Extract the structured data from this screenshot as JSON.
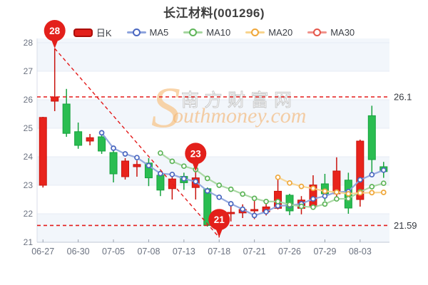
{
  "title": "长江材料(001296)",
  "legend": {
    "items": [
      {
        "label": "日K",
        "type": "kline",
        "line_color": "#e3201b",
        "marker_color": "#ab0e0a"
      },
      {
        "label": "MA5",
        "type": "line",
        "line_color": "#8ea4dd",
        "marker_color": "#4a67c0"
      },
      {
        "label": "MA10",
        "type": "line",
        "line_color": "#a5d69f",
        "marker_color": "#5fb55a"
      },
      {
        "label": "MA20",
        "type": "line",
        "line_color": "#f8d48e",
        "marker_color": "#efa73a"
      },
      {
        "label": "MA30",
        "type": "line",
        "line_color": "#f0938c",
        "marker_color": "#e4564a"
      }
    ]
  },
  "watermark": {
    "initial": "S",
    "cn": "南方财富网",
    "en": "outhmoney.com"
  },
  "chart_data": {
    "type": "candlestick",
    "title": "长江材料(001296)",
    "stock_name": "长江材料",
    "stock_code": "001296",
    "up_color": "#e8231c",
    "up_stroke": "#c9130d",
    "down_color": "#2abd51",
    "down_stroke": "#17a23e",
    "grid_band_color": "#f2f6fb",
    "y_axis": {
      "min": 21,
      "max": 28.15,
      "ticks": [
        21,
        22,
        23,
        24,
        25,
        26,
        27,
        28
      ]
    },
    "x_tick_labels": [
      "06-27",
      "06-30",
      "07-05",
      "07-08",
      "07-13",
      "07-18",
      "07-21",
      "07-26",
      "07-29",
      "08-03"
    ],
    "x_tick_indices": [
      0,
      3,
      6,
      9,
      12,
      15,
      18,
      21,
      24,
      27
    ],
    "candles": [
      {
        "date": "06-27",
        "open": 23.0,
        "high": 25.4,
        "low": 22.92,
        "close": 25.38
      },
      {
        "date": "06-28",
        "open": 25.95,
        "high": 27.8,
        "low": 25.6,
        "close": 26.1
      },
      {
        "date": "06-29",
        "open": 25.85,
        "high": 26.38,
        "low": 24.7,
        "close": 24.82
      },
      {
        "date": "06-30",
        "open": 24.88,
        "high": 25.2,
        "low": 24.28,
        "close": 24.4
      },
      {
        "date": "07-01",
        "open": 24.55,
        "high": 24.8,
        "low": 24.4,
        "close": 24.67
      },
      {
        "date": "07-04",
        "open": 24.7,
        "high": 24.75,
        "low": 24.1,
        "close": 24.2
      },
      {
        "date": "07-05",
        "open": 24.15,
        "high": 24.26,
        "low": 23.1,
        "close": 23.4
      },
      {
        "date": "07-06",
        "open": 23.3,
        "high": 23.95,
        "low": 23.2,
        "close": 23.85
      },
      {
        "date": "07-07",
        "open": 23.65,
        "high": 23.87,
        "low": 23.3,
        "close": 23.73
      },
      {
        "date": "07-08",
        "open": 23.78,
        "high": 23.95,
        "low": 22.97,
        "close": 23.26
      },
      {
        "date": "07-11",
        "open": 23.35,
        "high": 23.4,
        "low": 22.62,
        "close": 22.83
      },
      {
        "date": "07-12",
        "open": 22.88,
        "high": 23.35,
        "low": 22.5,
        "close": 23.22
      },
      {
        "date": "07-13",
        "open": 23.31,
        "high": 23.44,
        "low": 22.84,
        "close": 23.09
      },
      {
        "date": "07-14",
        "open": 22.92,
        "high": 23.49,
        "low": 22.5,
        "close": 23.26
      },
      {
        "date": "07-15",
        "open": 22.88,
        "high": 22.92,
        "low": 21.55,
        "close": 21.59
      },
      {
        "date": "07-18",
        "open": 21.6,
        "high": 21.85,
        "low": 21.17,
        "close": 21.75
      },
      {
        "date": "07-19",
        "open": 22.0,
        "high": 22.33,
        "low": 21.73,
        "close": 22.05
      },
      {
        "date": "07-20",
        "open": 22.03,
        "high": 22.33,
        "low": 21.85,
        "close": 22.15
      },
      {
        "date": "07-21",
        "open": 22.1,
        "high": 22.45,
        "low": 21.81,
        "close": 22.15
      },
      {
        "date": "07-22",
        "open": 22.07,
        "high": 22.41,
        "low": 21.94,
        "close": 22.24
      },
      {
        "date": "07-25",
        "open": 22.19,
        "high": 23.2,
        "low": 22.15,
        "close": 22.79
      },
      {
        "date": "07-26",
        "open": 22.65,
        "high": 22.7,
        "low": 21.95,
        "close": 22.1
      },
      {
        "date": "07-27",
        "open": 22.19,
        "high": 22.62,
        "low": 21.98,
        "close": 22.48
      },
      {
        "date": "07-28",
        "open": 22.24,
        "high": 23.35,
        "low": 22.2,
        "close": 23.01
      },
      {
        "date": "07-29",
        "open": 23.05,
        "high": 23.4,
        "low": 22.45,
        "close": 22.7
      },
      {
        "date": "08-01",
        "open": 22.7,
        "high": 23.98,
        "low": 22.6,
        "close": 23.5
      },
      {
        "date": "08-02",
        "open": 23.18,
        "high": 23.44,
        "low": 22.0,
        "close": 22.2
      },
      {
        "date": "08-03",
        "open": 22.5,
        "high": 24.6,
        "low": 22.25,
        "close": 24.55
      },
      {
        "date": "08-04",
        "open": 25.44,
        "high": 25.79,
        "low": 23.45,
        "close": 23.9
      },
      {
        "date": "08-05",
        "open": 23.65,
        "high": 23.82,
        "low": 23.26,
        "close": 23.48
      }
    ],
    "ma_series": [
      {
        "name": "MA5",
        "line_color": "#8ea4dd",
        "marker_color": "#4a67c0",
        "start": 5,
        "values": [
          24.84,
          24.3,
          24.1,
          23.97,
          23.69,
          23.41,
          23.38,
          23.23,
          23.13,
          22.8,
          22.58,
          22.35,
          22.16,
          21.94,
          22.07,
          22.28,
          22.29,
          22.35,
          22.52,
          22.62,
          22.76,
          22.78,
          23.19,
          23.37,
          23.53
        ]
      },
      {
        "name": "MA10",
        "line_color": "#a5d69f",
        "marker_color": "#5fb55a",
        "start": 10,
        "values": [
          24.13,
          23.84,
          23.67,
          23.55,
          23.24,
          23.0,
          22.86,
          22.69,
          22.54,
          22.43,
          22.43,
          22.32,
          22.26,
          22.23,
          22.34,
          22.52,
          22.53,
          22.77,
          22.95,
          23.07
        ]
      },
      {
        "name": "MA20",
        "line_color": "#f8d48e",
        "marker_color": "#efa73a",
        "start": 20,
        "values": [
          23.28,
          23.08,
          22.96,
          22.89,
          22.79,
          22.76,
          22.7,
          22.73,
          22.74,
          22.75
        ]
      },
      {
        "name": "MA30",
        "line_color": "#f0938c",
        "marker_color": "#e4564a",
        "start": 30,
        "values": []
      }
    ],
    "ref_lines": [
      {
        "value": 26.1,
        "label": "26.1"
      },
      {
        "value": 21.59,
        "label": "21.59"
      }
    ],
    "trend_line": {
      "from_index": 1,
      "from_value": 27.8,
      "to_index": 15,
      "to_value": 21.17
    },
    "markers": [
      {
        "index": 1,
        "label": "28",
        "value": 27.8,
        "at": "high"
      },
      {
        "index": 13,
        "label": "23",
        "value": 23.49,
        "at": "high"
      },
      {
        "index": 15,
        "label": "21",
        "value": 21.17,
        "at": "low"
      }
    ],
    "ref_color": "#e31a1a",
    "marker_color": "#e3201b"
  }
}
